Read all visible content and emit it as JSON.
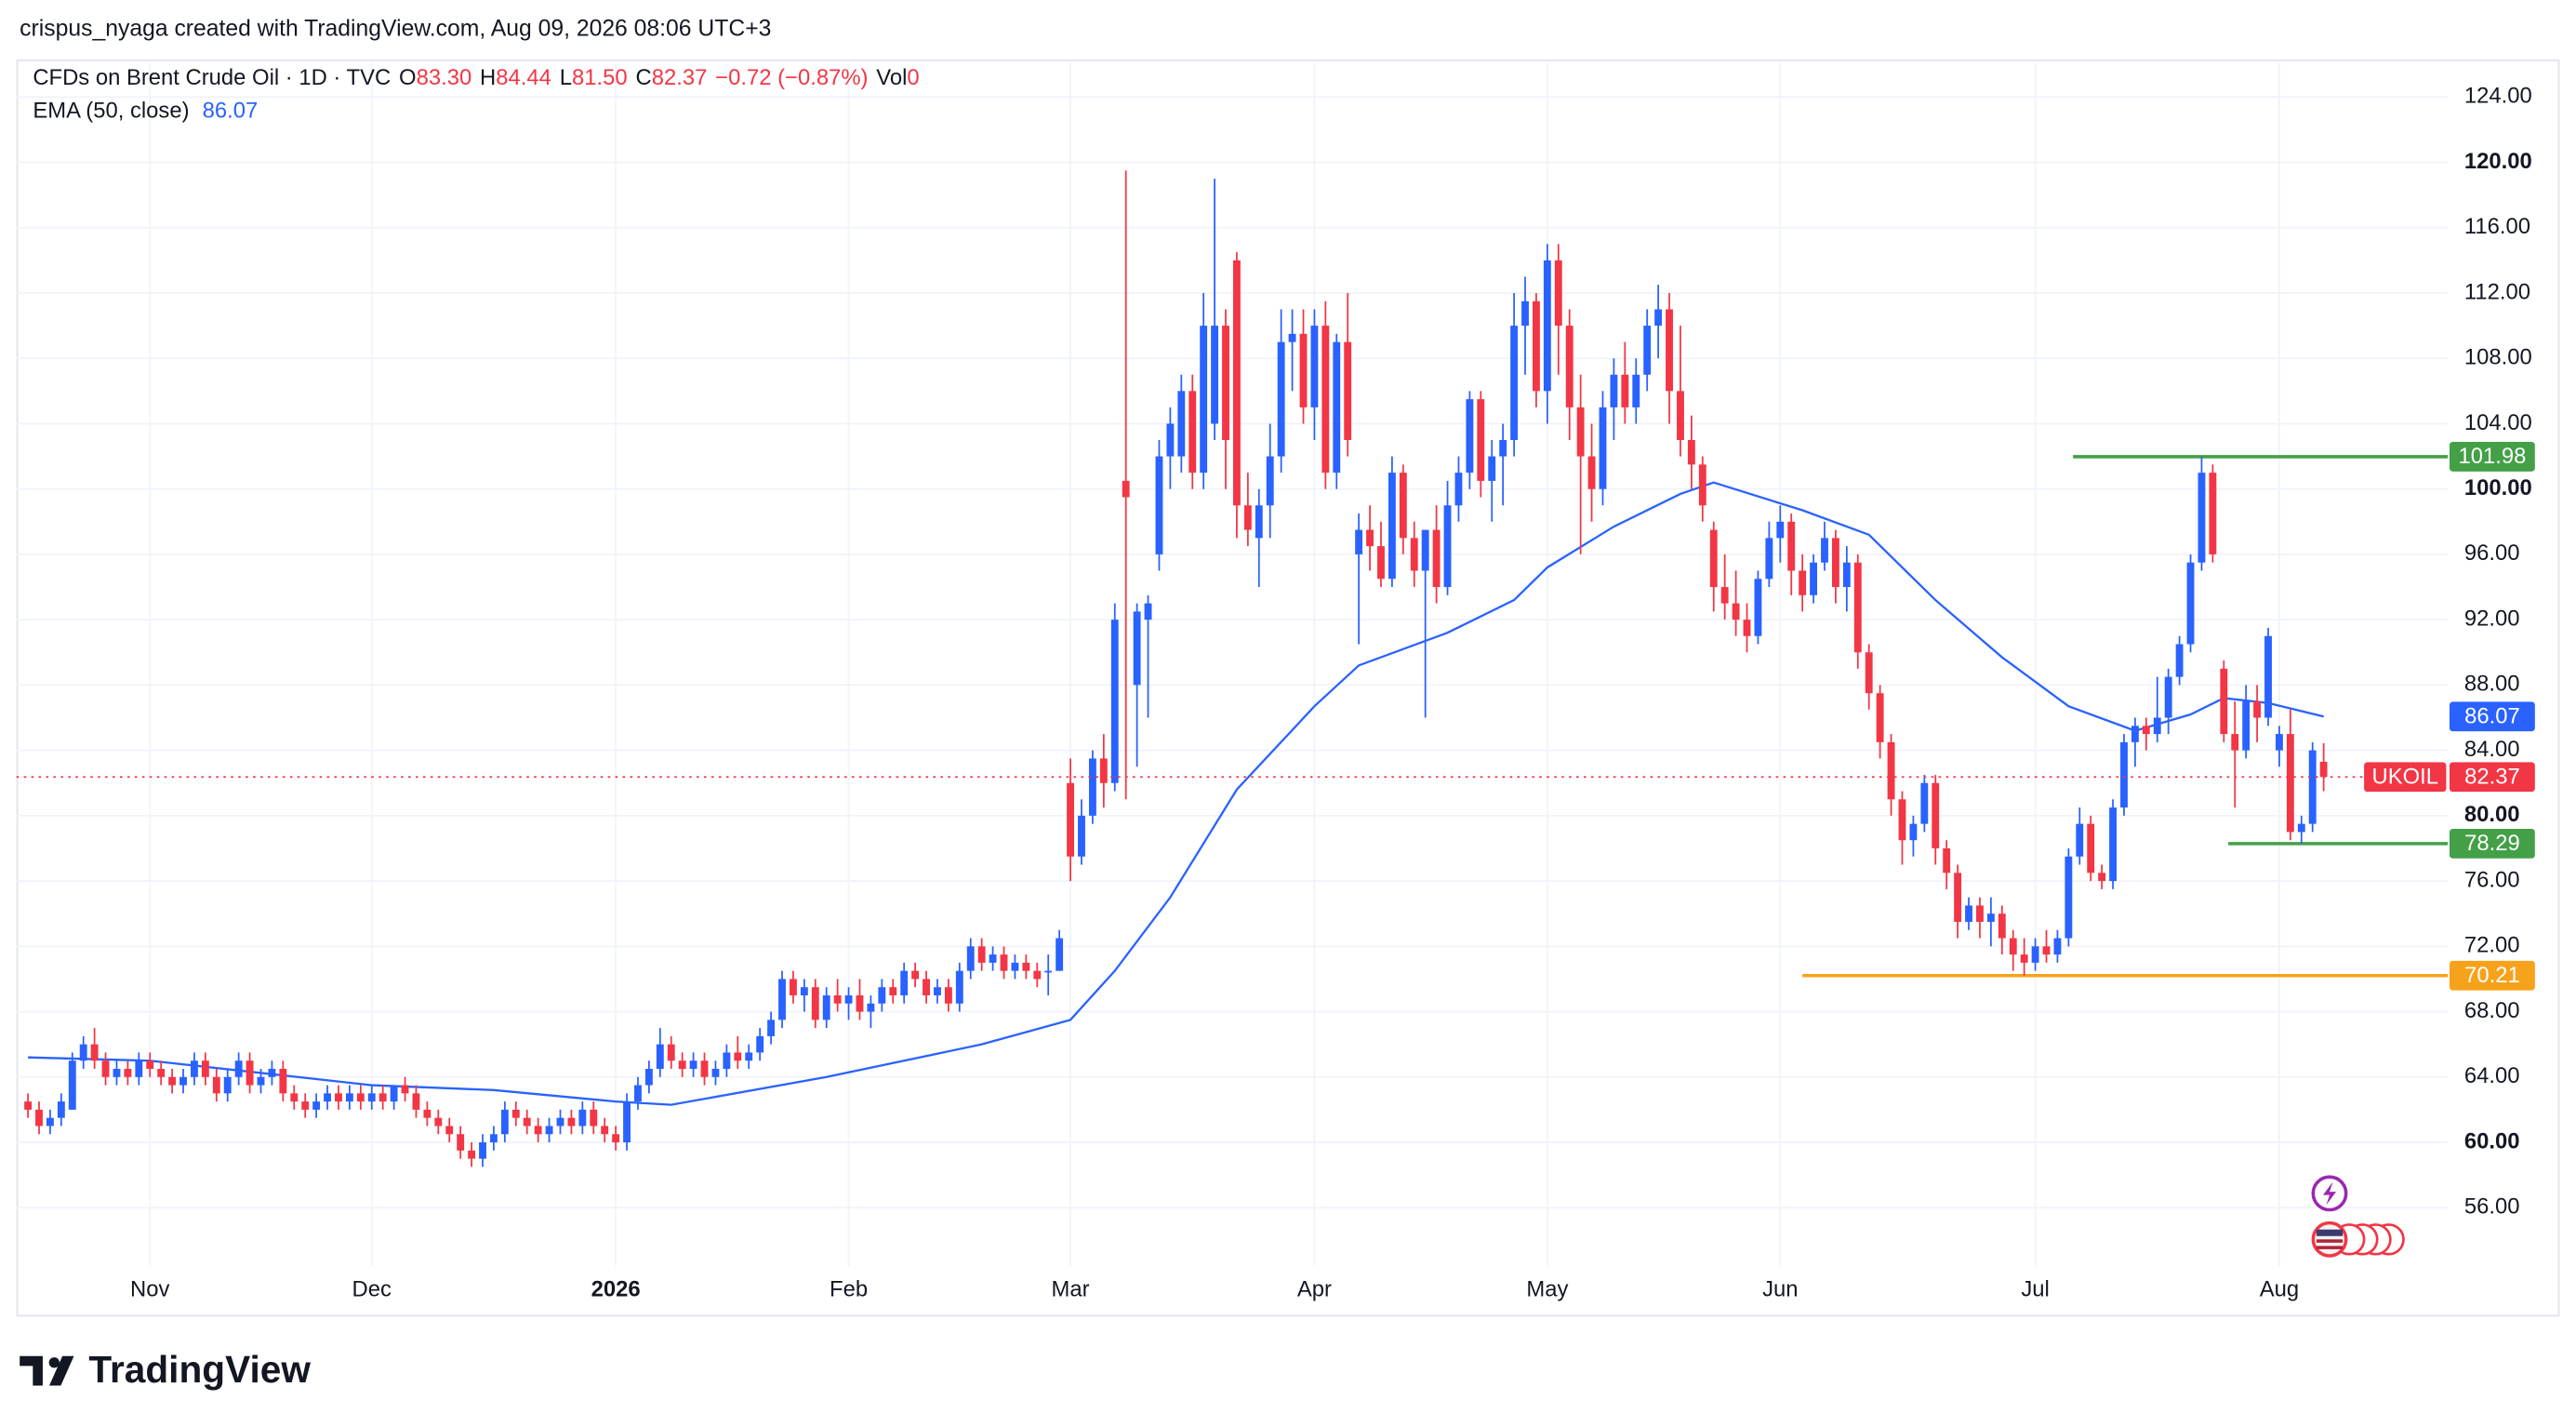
{
  "header": "crispus_nyaga created with TradingView.com, Aug 09, 2026 08:06 UTC+3",
  "footer": "TradingView",
  "chart_data": {
    "type": "candlestick",
    "legend": {
      "symbol": "CFDs on Brent Crude Oil · 1D · TVC",
      "items": [
        {
          "label": "O",
          "value": "83.30"
        },
        {
          "label": "H",
          "value": "84.44"
        },
        {
          "label": "L",
          "value": "81.50"
        },
        {
          "label": "C",
          "value": "82.37"
        }
      ],
      "change": "−0.72 (−0.87%)",
      "volume_label": "Vol",
      "volume": "0"
    },
    "symbol_tag": "UKOIL",
    "up_color": "#2962ff",
    "down_color": "#f23645",
    "ohlc": [
      [
        62.5,
        63,
        61.5,
        62
      ],
      [
        62,
        62.5,
        60.5,
        61
      ],
      [
        61,
        62,
        60.5,
        61.5
      ],
      [
        61.5,
        63,
        61,
        62.5
      ],
      [
        62,
        65.5,
        62,
        65
      ],
      [
        65,
        66.5,
        64.5,
        66
      ],
      [
        66,
        67,
        64.5,
        65
      ],
      [
        65,
        65.5,
        63.5,
        64
      ],
      [
        64,
        65,
        63.5,
        64.5
      ],
      [
        64.5,
        65,
        63.5,
        64
      ],
      [
        64,
        65.5,
        63.5,
        65
      ],
      [
        65,
        65.5,
        64,
        64.5
      ],
      [
        64.5,
        65,
        63.5,
        64
      ],
      [
        64,
        64.5,
        63,
        63.5
      ],
      [
        63.5,
        64.5,
        63,
        64
      ],
      [
        64,
        65.5,
        63.5,
        65
      ],
      [
        65,
        65.5,
        63.5,
        64
      ],
      [
        64,
        64.5,
        62.5,
        63
      ],
      [
        63,
        64.5,
        62.5,
        64
      ],
      [
        64,
        65.5,
        63.5,
        65
      ],
      [
        65,
        65.5,
        63,
        63.5
      ],
      [
        63.5,
        64.5,
        63,
        64
      ],
      [
        64,
        65,
        63.5,
        64.5
      ],
      [
        64.5,
        65,
        62.5,
        63
      ],
      [
        63,
        63.5,
        62,
        62.5
      ],
      [
        62.5,
        63,
        61.5,
        62
      ],
      [
        62,
        63,
        61.5,
        62.5
      ],
      [
        62.5,
        63.5,
        62,
        63
      ],
      [
        63,
        63.5,
        62,
        62.5
      ],
      [
        62.5,
        63.5,
        62,
        63
      ],
      [
        63,
        63.5,
        62,
        62.5
      ],
      [
        62.5,
        63.5,
        62,
        63
      ],
      [
        63,
        63.5,
        62,
        62.5
      ],
      [
        62.5,
        63.5,
        62,
        63.5
      ],
      [
        63.5,
        64,
        62.5,
        63
      ],
      [
        63,
        63.5,
        61.5,
        62
      ],
      [
        62,
        62.5,
        61,
        61.5
      ],
      [
        61.5,
        62,
        60.5,
        61
      ],
      [
        61,
        61.5,
        60,
        60.5
      ],
      [
        60.5,
        61,
        59,
        59.5
      ],
      [
        59.5,
        60,
        58.5,
        59
      ],
      [
        59,
        60.5,
        58.5,
        60
      ],
      [
        60,
        61,
        59.5,
        60.5
      ],
      [
        60.5,
        62.5,
        60,
        62
      ],
      [
        62,
        62.5,
        61,
        61.5
      ],
      [
        61.5,
        62,
        60.5,
        61
      ],
      [
        61,
        61.5,
        60,
        60.5
      ],
      [
        60.5,
        61.5,
        60,
        61
      ],
      [
        61,
        62,
        60.5,
        61.5
      ],
      [
        61.5,
        62,
        60.5,
        61
      ],
      [
        61,
        62.5,
        60.5,
        62
      ],
      [
        62,
        62.5,
        60.5,
        61
      ],
      [
        61,
        61.5,
        60,
        60.5
      ],
      [
        60.5,
        61,
        59.5,
        60
      ],
      [
        60,
        63,
        59.5,
        62.5
      ],
      [
        62.5,
        64,
        62,
        63.5
      ],
      [
        63.5,
        65,
        63,
        64.5
      ],
      [
        64.5,
        67,
        64,
        66
      ],
      [
        66,
        66.5,
        64.5,
        65
      ],
      [
        65,
        65.5,
        64,
        64.5
      ],
      [
        64.5,
        65.5,
        64,
        65
      ],
      [
        65,
        65.5,
        63.5,
        64
      ],
      [
        64,
        65,
        63.5,
        64.5
      ],
      [
        64.5,
        66,
        64,
        65.5
      ],
      [
        65.5,
        66.5,
        64.5,
        65
      ],
      [
        65,
        66,
        64.5,
        65.5
      ],
      [
        65.5,
        67,
        65,
        66.5
      ],
      [
        66.5,
        68,
        66,
        67.5
      ],
      [
        67.5,
        70.5,
        67,
        70
      ],
      [
        70,
        70.5,
        68.5,
        69
      ],
      [
        69,
        70,
        68,
        69.5
      ],
      [
        69.5,
        70,
        67,
        67.5
      ],
      [
        67.5,
        69.5,
        67,
        69
      ],
      [
        69,
        70,
        68,
        68.5
      ],
      [
        68.5,
        69.5,
        67.5,
        69
      ],
      [
        69,
        70,
        67.5,
        68
      ],
      [
        68,
        69,
        67,
        68.5
      ],
      [
        68.5,
        70,
        68,
        69.5
      ],
      [
        69.5,
        70,
        68.5,
        69
      ],
      [
        69,
        71,
        68.5,
        70.5
      ],
      [
        70.5,
        71,
        69.5,
        70
      ],
      [
        70,
        70.5,
        68.5,
        69
      ],
      [
        69,
        70,
        68.5,
        69.5
      ],
      [
        69.5,
        70,
        68,
        68.5
      ],
      [
        68.5,
        71,
        68,
        70.5
      ],
      [
        70.5,
        72.5,
        70,
        72
      ],
      [
        72,
        72.5,
        70.5,
        71
      ],
      [
        71,
        72,
        70.5,
        71.5
      ],
      [
        71.5,
        72,
        70,
        70.5
      ],
      [
        70.5,
        71.5,
        70,
        71
      ],
      [
        71,
        71.5,
        70,
        70.5
      ],
      [
        70.5,
        71,
        69.5,
        70
      ],
      [
        70.5,
        71.5,
        69,
        70.5
      ],
      [
        70.5,
        73,
        70.5,
        72.5
      ],
      [
        82,
        83.5,
        76,
        77.5
      ],
      [
        77.5,
        81,
        77,
        80
      ],
      [
        80,
        84,
        79.5,
        83.5
      ],
      [
        83.5,
        85,
        80.5,
        82
      ],
      [
        82,
        93,
        81.5,
        92
      ],
      [
        100.5,
        119.5,
        81,
        99.5
      ],
      [
        88,
        93,
        83,
        92.5
      ],
      [
        92,
        93.5,
        86,
        93
      ],
      [
        96,
        103,
        95,
        102
      ],
      [
        102,
        105,
        100,
        104
      ],
      [
        102,
        107,
        101,
        106
      ],
      [
        106,
        107,
        100,
        101
      ],
      [
        101,
        112,
        100,
        110
      ],
      [
        104,
        119,
        103,
        110
      ],
      [
        110,
        111,
        100,
        103
      ],
      [
        114,
        114.5,
        97,
        99
      ],
      [
        99,
        101,
        96.5,
        97.5
      ],
      [
        97,
        100,
        94,
        99
      ],
      [
        99,
        104,
        97,
        102
      ],
      [
        102,
        111,
        101,
        109
      ],
      [
        109,
        111,
        106,
        109.5
      ],
      [
        109.5,
        111,
        104,
        105
      ],
      [
        105,
        111,
        103,
        110
      ],
      [
        110,
        111.5,
        100,
        101
      ],
      [
        101,
        109.5,
        100,
        109
      ],
      [
        109,
        112,
        102,
        103
      ],
      [
        96,
        98.5,
        90.5,
        97.5
      ],
      [
        97.5,
        99,
        95,
        96.5
      ],
      [
        96.5,
        98,
        94,
        94.5
      ],
      [
        94.5,
        102,
        94,
        101
      ],
      [
        101,
        101.5,
        96,
        97
      ],
      [
        97,
        98,
        94,
        95
      ],
      [
        95,
        97,
        86,
        97.5
      ],
      [
        97.5,
        99,
        93,
        94
      ],
      [
        94,
        100.5,
        93.5,
        99
      ],
      [
        99,
        102,
        98,
        101
      ],
      [
        101,
        106,
        100,
        105.5
      ],
      [
        105.5,
        106,
        99.5,
        100.5
      ],
      [
        100.5,
        103,
        98,
        102
      ],
      [
        102,
        104,
        99,
        103
      ],
      [
        103,
        112,
        102,
        110
      ],
      [
        110,
        113,
        107,
        111.5
      ],
      [
        111.5,
        112,
        105,
        106
      ],
      [
        106,
        115,
        104,
        114
      ],
      [
        114,
        115,
        107,
        110
      ],
      [
        110,
        111,
        103,
        105
      ],
      [
        105,
        107,
        96,
        102
      ],
      [
        102,
        104,
        98,
        100
      ],
      [
        100,
        106,
        99,
        105
      ],
      [
        105,
        108,
        103,
        107
      ],
      [
        107,
        109,
        104,
        105
      ],
      [
        105,
        108,
        104,
        107
      ],
      [
        107,
        111,
        106,
        110
      ],
      [
        110,
        112.5,
        108,
        111
      ],
      [
        111,
        112,
        104,
        106
      ],
      [
        106,
        110,
        102,
        103
      ],
      [
        103,
        104.5,
        100,
        101.5
      ],
      [
        101.5,
        102,
        98,
        99
      ],
      [
        97.5,
        98,
        92.5,
        94
      ],
      [
        94,
        96,
        92,
        93
      ],
      [
        93,
        95,
        91,
        92
      ],
      [
        92,
        93,
        90,
        91
      ],
      [
        91,
        95,
        90.5,
        94.5
      ],
      [
        94.5,
        98,
        94,
        97
      ],
      [
        97,
        99,
        95.5,
        98
      ],
      [
        98,
        98.5,
        93.5,
        95
      ],
      [
        95,
        96,
        92.5,
        93.5
      ],
      [
        93.5,
        96,
        93,
        95.5
      ],
      [
        95.5,
        98,
        95,
        97
      ],
      [
        97,
        97.5,
        93,
        94
      ],
      [
        94,
        96.5,
        92.5,
        95.5
      ],
      [
        95.5,
        96,
        89,
        90
      ],
      [
        90,
        90.5,
        86.5,
        87.5
      ],
      [
        87.5,
        88,
        83.5,
        84.5
      ],
      [
        84.5,
        85,
        80,
        81
      ],
      [
        81,
        81.5,
        77,
        78.5
      ],
      [
        78.5,
        80,
        77.5,
        79.5
      ],
      [
        79.5,
        82.5,
        79,
        82
      ],
      [
        82,
        82.5,
        77,
        78
      ],
      [
        78,
        78.5,
        75.5,
        76.5
      ],
      [
        76.5,
        77,
        72.5,
        73.5
      ],
      [
        73.5,
        75,
        73,
        74.5
      ],
      [
        74.5,
        75,
        72.5,
        73.5
      ],
      [
        73.5,
        75,
        72,
        74
      ],
      [
        74,
        74.5,
        71.5,
        72.5
      ],
      [
        72.5,
        73,
        70.5,
        71.5
      ],
      [
        71.5,
        72.5,
        70.21,
        71
      ],
      [
        71,
        72.5,
        70.5,
        72
      ],
      [
        72,
        73,
        71,
        71.5
      ],
      [
        71.5,
        73,
        71,
        72.5
      ],
      [
        72.5,
        78,
        72,
        77.5
      ],
      [
        77.5,
        80.5,
        77,
        79.5
      ],
      [
        79.5,
        80,
        76,
        76.5
      ],
      [
        76.5,
        77,
        75.5,
        76
      ],
      [
        76,
        81,
        75.5,
        80.5
      ],
      [
        80.5,
        85,
        80,
        84.5
      ],
      [
        84.5,
        86,
        83,
        85.5
      ],
      [
        85.5,
        86,
        84,
        85
      ],
      [
        85,
        88.5,
        84.5,
        86
      ],
      [
        86,
        89,
        85,
        88.5
      ],
      [
        88.5,
        91,
        88,
        90.5
      ],
      [
        90.5,
        96,
        90,
        95.5
      ],
      [
        95.5,
        101.98,
        95,
        101
      ],
      [
        101,
        101.5,
        95.5,
        96
      ],
      [
        89,
        89.5,
        84.5,
        85
      ],
      [
        85,
        87,
        80.5,
        84
      ],
      [
        84,
        88,
        83.5,
        87
      ],
      [
        87,
        88,
        84.5,
        86
      ],
      [
        86,
        91.5,
        85.5,
        91
      ],
      [
        84,
        85.5,
        83,
        85
      ],
      [
        85,
        86.5,
        78.5,
        79
      ],
      [
        79,
        80,
        78.29,
        79.5
      ],
      [
        79.5,
        84.5,
        79,
        84
      ],
      [
        83.3,
        84.44,
        81.5,
        82.37
      ]
    ],
    "ema": {
      "name": "EMA (50, close)",
      "color": "#2962ff",
      "x": [
        0,
        11,
        31,
        42,
        53,
        58,
        72,
        86,
        94,
        98,
        103,
        109,
        116,
        120,
        128,
        134,
        137,
        143,
        149,
        152,
        160,
        166,
        172,
        178,
        184,
        190,
        195,
        198,
        202,
        207
      ],
      "values": [
        65.2,
        65,
        63.5,
        63.2,
        62.5,
        62.3,
        64,
        66,
        67.5,
        70.5,
        75,
        81.6,
        86.7,
        89.2,
        91.2,
        93.2,
        95.2,
        97.7,
        99.7,
        100.4,
        98.7,
        97.2,
        93.2,
        89.7,
        86.7,
        85.2,
        86.2,
        87.2,
        86.9,
        86.07
      ]
    },
    "price_lines": [
      {
        "value": 101.98,
        "color": "#43a047",
        "from_x": 184.4
      },
      {
        "value": 78.29,
        "color": "#43a047",
        "from_x": 198.4
      },
      {
        "value": 70.21,
        "color": "#f7a21b",
        "from_x": 160
      }
    ],
    "xlim": [
      -1.04,
      218.2
    ],
    "ylim": [
      52.45,
      126.1
    ],
    "xticks": [
      {
        "value": 11,
        "label": "Nov"
      },
      {
        "value": 31,
        "label": "Dec"
      },
      {
        "value": 53,
        "label": "2026"
      },
      {
        "value": 74,
        "label": "Feb"
      },
      {
        "value": 94,
        "label": "Mar"
      },
      {
        "value": 116,
        "label": "Apr"
      },
      {
        "value": 137,
        "label": "May"
      },
      {
        "value": 158,
        "label": "Jun"
      },
      {
        "value": 181,
        "label": "Jul"
      },
      {
        "value": 203,
        "label": "Aug"
      }
    ],
    "yticks": [
      {
        "value": 56,
        "label": "56.00"
      },
      {
        "value": 60,
        "label": "60.00"
      },
      {
        "value": 64,
        "label": "64.00"
      },
      {
        "value": 68,
        "label": "68.00"
      },
      {
        "value": 72,
        "label": "72.00"
      },
      {
        "value": 76,
        "label": "76.00"
      },
      {
        "value": 80,
        "label": "80.00"
      },
      {
        "value": 84,
        "label": "84.00"
      },
      {
        "value": 88,
        "label": "88.00"
      },
      {
        "value": 92,
        "label": "92.00"
      },
      {
        "value": 96,
        "label": "96.00"
      },
      {
        "value": 100,
        "label": "100.00"
      },
      {
        "value": 104,
        "label": "104.00"
      },
      {
        "value": 108,
        "label": "108.00"
      },
      {
        "value": 112,
        "label": "112.00"
      },
      {
        "value": 116,
        "label": "116.00"
      },
      {
        "value": 120,
        "label": "120.00"
      },
      {
        "value": 124,
        "label": "124.00"
      }
    ],
    "grid": true
  }
}
